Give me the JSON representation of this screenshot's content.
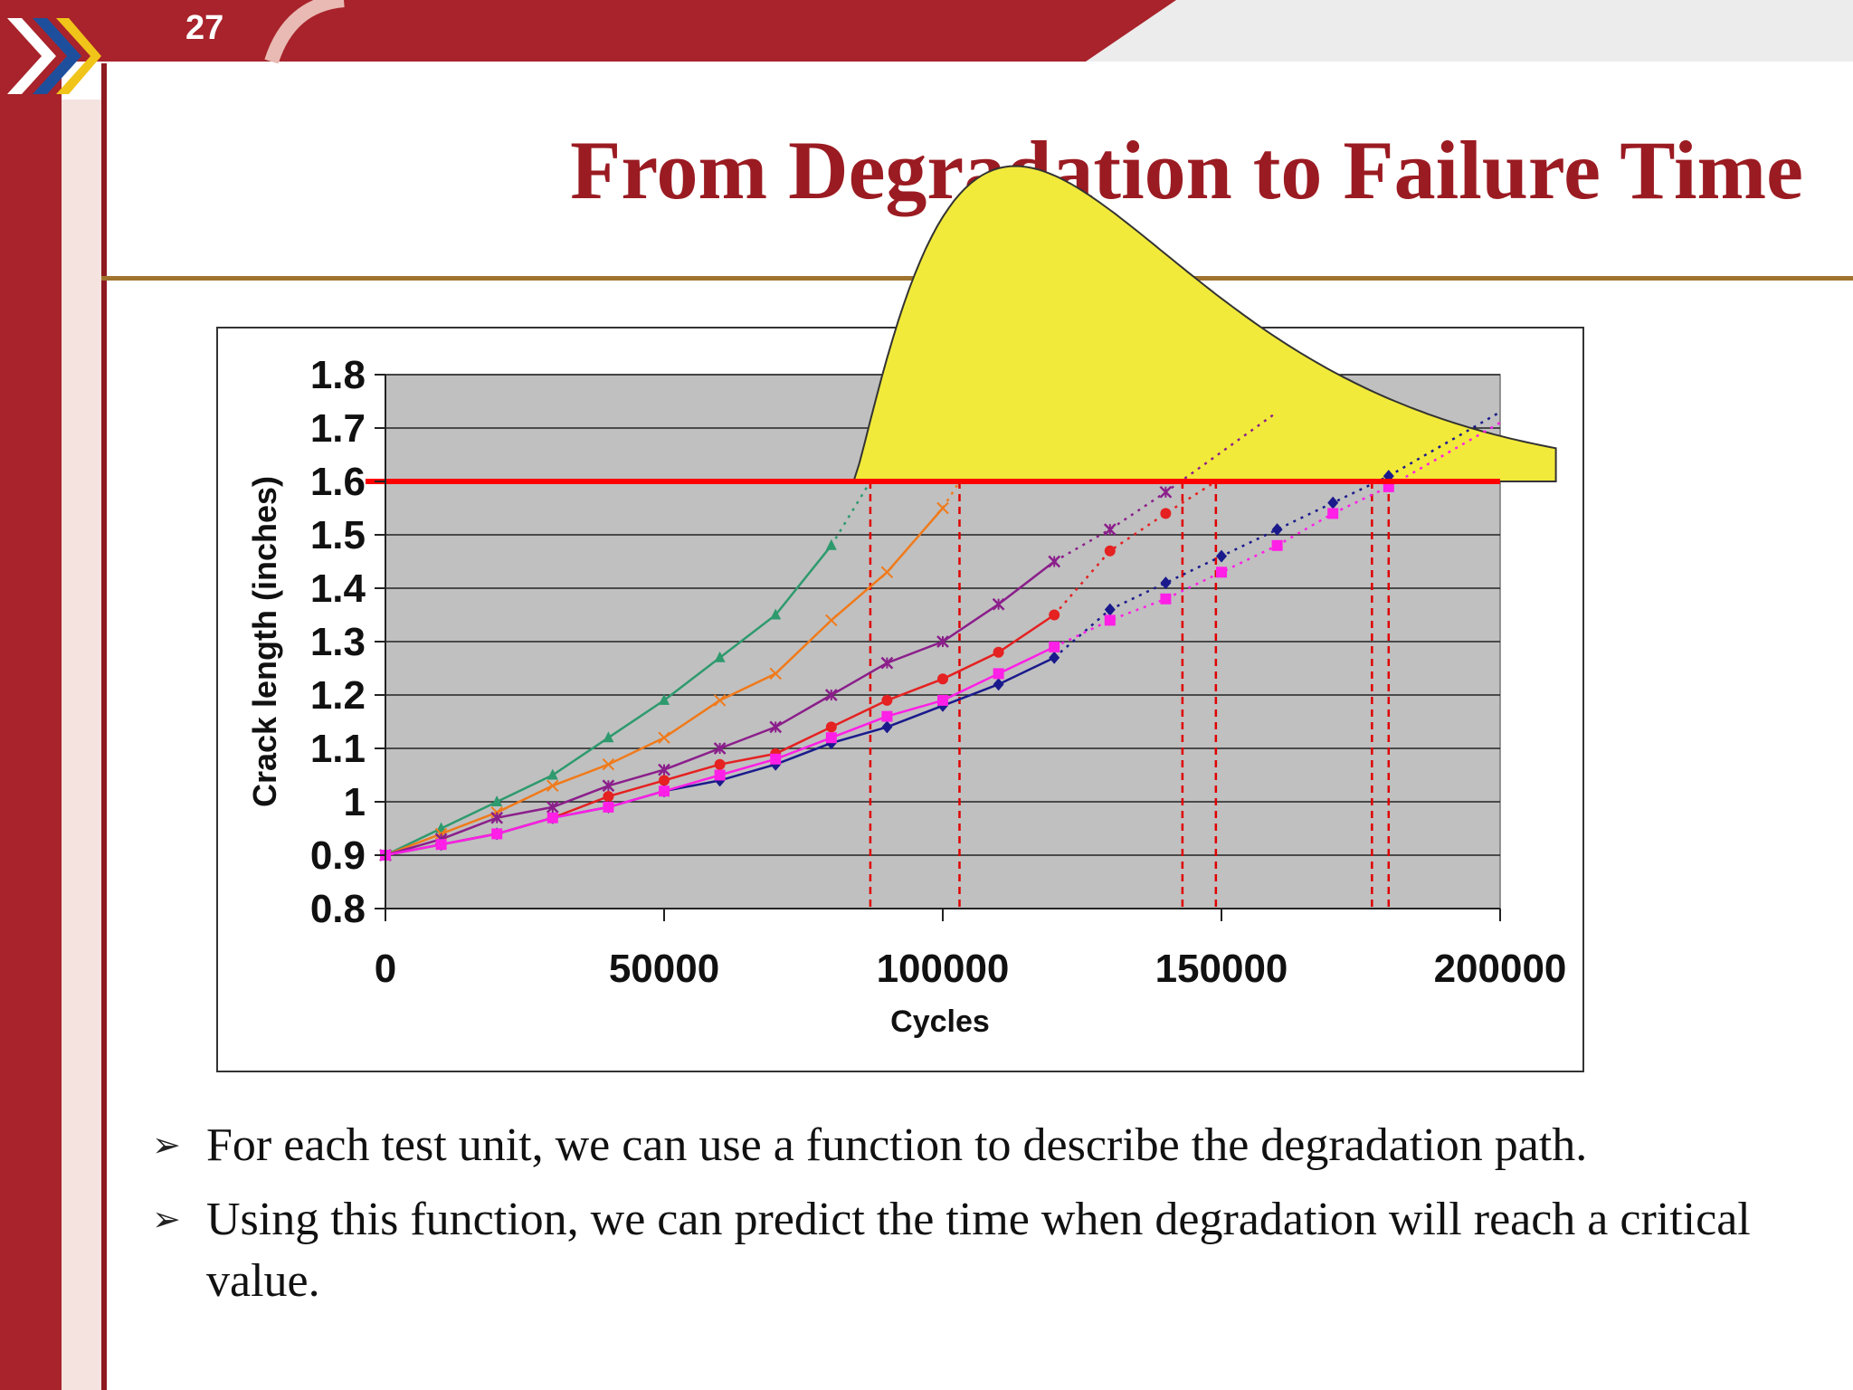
{
  "slide": {
    "number": "27",
    "title": "From Degradation to Failure Time",
    "bullets": [
      "For each test unit, we can use a function to describe the degradation path.",
      "Using this function, we can predict the time when degradation will reach a critical value."
    ],
    "colors": {
      "title": "#9b1b22",
      "banner": "#a8232b",
      "rule": "#a0742e"
    }
  },
  "chart_data": {
    "type": "line",
    "xlabel": "Cycles",
    "ylabel": "Crack length (inches)",
    "xlim": [
      0,
      200000
    ],
    "ylim": [
      0.8,
      1.8
    ],
    "xticks": [
      "0",
      "50000",
      "100000",
      "150000",
      "200000"
    ],
    "yticks": [
      "0.8",
      "0.9",
      "1",
      "1.1",
      "1.2",
      "1.3",
      "1.4",
      "1.5",
      "1.6",
      "1.7",
      "1.8"
    ],
    "grid": true,
    "critical_value": 1.6,
    "series": [
      {
        "color": "#2e9a6e",
        "marker": "triangle",
        "x": [
          0,
          10000,
          20000,
          30000,
          40000,
          50000,
          60000,
          70000,
          80000
        ],
        "y": [
          0.9,
          0.95,
          1.0,
          1.05,
          1.12,
          1.19,
          1.27,
          1.35,
          1.48
        ],
        "extrapolation": {
          "x": [
            80000,
            87000
          ],
          "y": [
            1.48,
            1.6
          ]
        }
      },
      {
        "color": "#f07a1a",
        "marker": "x",
        "x": [
          0,
          10000,
          20000,
          30000,
          40000,
          50000,
          60000,
          70000,
          80000,
          90000,
          100000
        ],
        "y": [
          0.9,
          0.94,
          0.98,
          1.03,
          1.07,
          1.12,
          1.19,
          1.24,
          1.34,
          1.43,
          1.55
        ],
        "extrapolation": {
          "x": [
            100000,
            103000
          ],
          "y": [
            1.55,
            1.6
          ]
        }
      },
      {
        "color": "#8b1f8b",
        "marker": "star",
        "x": [
          0,
          10000,
          20000,
          30000,
          40000,
          50000,
          60000,
          70000,
          80000,
          90000,
          100000,
          110000,
          120000
        ],
        "y": [
          0.9,
          0.93,
          0.97,
          0.99,
          1.03,
          1.06,
          1.1,
          1.14,
          1.2,
          1.26,
          1.3,
          1.37,
          1.45
        ],
        "extrapolation": {
          "x": [
            120000,
            130000,
            140000,
            160000
          ],
          "y": [
            1.45,
            1.51,
            1.58,
            1.73
          ]
        }
      },
      {
        "color": "#e52121",
        "marker": "circle",
        "x": [
          0,
          10000,
          20000,
          30000,
          40000,
          50000,
          60000,
          70000,
          80000,
          90000,
          100000,
          110000,
          120000
        ],
        "y": [
          0.9,
          0.92,
          0.94,
          0.97,
          1.01,
          1.04,
          1.07,
          1.09,
          1.14,
          1.19,
          1.23,
          1.28,
          1.35
        ],
        "extrapolation": {
          "x": [
            120000,
            130000,
            140000,
            149000
          ],
          "y": [
            1.35,
            1.47,
            1.54,
            1.6
          ]
        }
      },
      {
        "color": "#1a1a8c",
        "marker": "diamond",
        "x": [
          0,
          10000,
          20000,
          30000,
          40000,
          50000,
          60000,
          70000,
          80000,
          90000,
          100000,
          110000,
          120000
        ],
        "y": [
          0.9,
          0.92,
          0.94,
          0.97,
          0.99,
          1.02,
          1.04,
          1.07,
          1.11,
          1.14,
          1.18,
          1.22,
          1.27
        ],
        "extrapolation": {
          "x": [
            120000,
            130000,
            140000,
            150000,
            160000,
            170000,
            180000,
            200000
          ],
          "y": [
            1.27,
            1.36,
            1.41,
            1.46,
            1.51,
            1.56,
            1.61,
            1.73
          ]
        }
      },
      {
        "color": "#ff1fe6",
        "marker": "square",
        "x": [
          0,
          10000,
          20000,
          30000,
          40000,
          50000,
          60000,
          70000,
          80000,
          90000,
          100000,
          110000,
          120000
        ],
        "y": [
          0.9,
          0.92,
          0.94,
          0.97,
          0.99,
          1.02,
          1.05,
          1.08,
          1.12,
          1.16,
          1.19,
          1.24,
          1.29
        ],
        "extrapolation": {
          "x": [
            120000,
            130000,
            140000,
            150000,
            160000,
            170000,
            180000,
            200000
          ],
          "y": [
            1.29,
            1.34,
            1.38,
            1.43,
            1.48,
            1.54,
            1.59,
            1.71
          ]
        }
      }
    ],
    "failure_times": [
      87000,
      103000,
      143000,
      149000,
      177000,
      180000
    ],
    "failure_time_density_peak_cycles": 113000
  }
}
